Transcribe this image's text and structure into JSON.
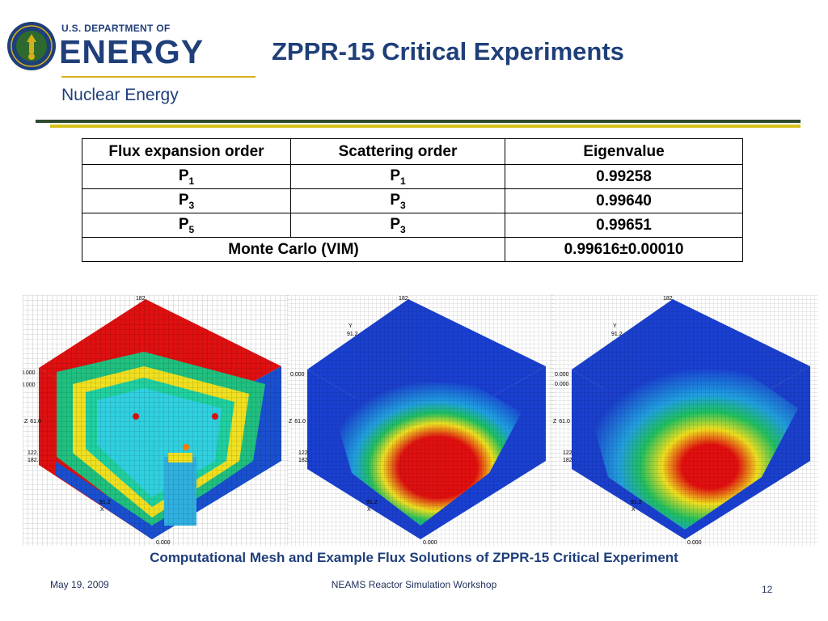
{
  "header": {
    "dept_small": "U.S. DEPARTMENT OF",
    "dept_big": "ENERGY",
    "office": "Nuclear Energy",
    "title": "ZPPR-15 Critical Experiments"
  },
  "table": {
    "headers": [
      "Flux expansion order",
      "Scattering order",
      "Eigenvalue"
    ],
    "rows": [
      {
        "flux_base": "P",
        "flux_sub": "1",
        "scat_base": "P",
        "scat_sub": "1",
        "eigenvalue": "0.99258"
      },
      {
        "flux_base": "P",
        "flux_sub": "3",
        "scat_base": "P",
        "scat_sub": "3",
        "eigenvalue": "0.99640"
      },
      {
        "flux_base": "P",
        "flux_sub": "5",
        "scat_base": "P",
        "scat_sub": "3",
        "eigenvalue": "0.99651"
      }
    ],
    "reference": {
      "label": "Monte Carlo (VIM)",
      "eigenvalue": "0.99616±0.00010"
    }
  },
  "figures": {
    "axis_labels": {
      "top": "182.",
      "y_letter": "Y",
      "y_mid": "91.2",
      "zero_upper": "0.000",
      "z_letter": "Z",
      "z_mid": "61.0",
      "z_122": "122.",
      "z_182": "182.",
      "x_mid": "91.2",
      "x_letter": "X",
      "zero_lower": "0.000"
    },
    "caption": "Computational Mesh and Example Flux Solutions of ZPPR-15 Critical Experiment"
  },
  "footer": {
    "date": "May 19, 2009",
    "event": "NEAMS Reactor Simulation Workshop",
    "page": "12"
  },
  "colors": {
    "doe_blue": "#1f3f7a",
    "gold": "#d6b01a",
    "band_green": "#2f4b2f"
  }
}
